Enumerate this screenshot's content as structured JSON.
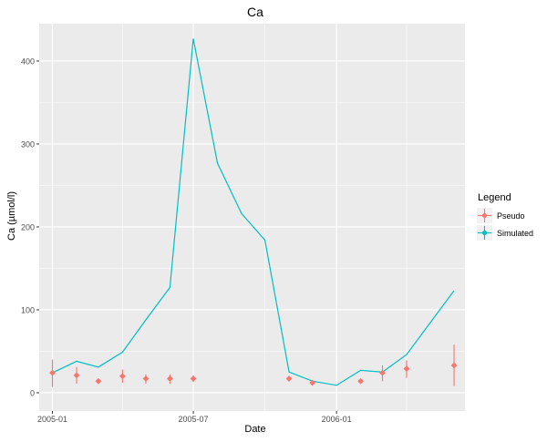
{
  "chart_data": {
    "type": "line",
    "title": "Ca",
    "xlabel": "Date",
    "ylabel": "Ca (µmol/l)",
    "x_tick_labels": [
      {
        "date": "2005-01-01",
        "label": "2005-01"
      },
      {
        "date": "2005-07-01",
        "label": "2005-07"
      },
      {
        "date": "2006-01-01",
        "label": "2006-01"
      }
    ],
    "y_ticks": [
      0,
      100,
      200,
      300,
      400
    ],
    "xlim": [
      "2004-12-15",
      "2006-06-15"
    ],
    "ylim": [
      -22,
      445
    ],
    "grid": true,
    "legend_position": "right",
    "legend_title": "Legend",
    "series": [
      {
        "name": "Pseudo",
        "kind": "points-with-errorbars",
        "color": "#F8766D",
        "points": [
          {
            "x": "2005-01-01",
            "y": 24,
            "ymin": 7,
            "ymax": 40
          },
          {
            "x": "2005-02-01",
            "y": 21,
            "ymin": 11,
            "ymax": 31
          },
          {
            "x": "2005-03-01",
            "y": 14,
            "ymin": 11,
            "ymax": 17
          },
          {
            "x": "2005-04-01",
            "y": 20,
            "ymin": 12,
            "ymax": 28
          },
          {
            "x": "2005-05-01",
            "y": 17,
            "ymin": 11,
            "ymax": 22
          },
          {
            "x": "2005-06-01",
            "y": 17,
            "ymin": 11,
            "ymax": 22
          },
          {
            "x": "2005-07-01",
            "y": 17,
            "ymin": 13,
            "ymax": 21
          },
          {
            "x": "2005-11-01",
            "y": 17,
            "ymin": 14,
            "ymax": 20
          },
          {
            "x": "2005-12-01",
            "y": 12,
            "ymin": 10,
            "ymax": 14
          },
          {
            "x": "2006-02-01",
            "y": 14,
            "ymin": 12,
            "ymax": 16
          },
          {
            "x": "2006-03-01",
            "y": 24,
            "ymin": 14,
            "ymax": 33
          },
          {
            "x": "2006-04-01",
            "y": 29,
            "ymin": 18,
            "ymax": 39
          },
          {
            "x": "2006-06-01",
            "y": 33,
            "ymin": 8,
            "ymax": 58
          }
        ]
      },
      {
        "name": "Simulated",
        "kind": "line",
        "color": "#00BFC4",
        "points": [
          {
            "x": "2005-01-01",
            "y": 24
          },
          {
            "x": "2005-02-01",
            "y": 38
          },
          {
            "x": "2005-03-01",
            "y": 31
          },
          {
            "x": "2005-04-01",
            "y": 49
          },
          {
            "x": "2005-05-01",
            "y": 88
          },
          {
            "x": "2005-06-01",
            "y": 127
          },
          {
            "x": "2005-07-01",
            "y": 427
          },
          {
            "x": "2005-08-01",
            "y": 277
          },
          {
            "x": "2005-09-01",
            "y": 216
          },
          {
            "x": "2005-10-01",
            "y": 184
          },
          {
            "x": "2005-11-01",
            "y": 25
          },
          {
            "x": "2005-12-01",
            "y": 14
          },
          {
            "x": "2006-01-01",
            "y": 9
          },
          {
            "x": "2006-02-01",
            "y": 27
          },
          {
            "x": "2006-03-01",
            "y": 25
          },
          {
            "x": "2006-04-01",
            "y": 46
          },
          {
            "x": "2006-05-01",
            "y": 84
          },
          {
            "x": "2006-06-01",
            "y": 123
          }
        ]
      }
    ]
  },
  "colors": {
    "panel_background": "#EBEBEB",
    "grid_major": "#FFFFFF",
    "axis_text": "#4D4D4D",
    "title_text": "#000000"
  }
}
